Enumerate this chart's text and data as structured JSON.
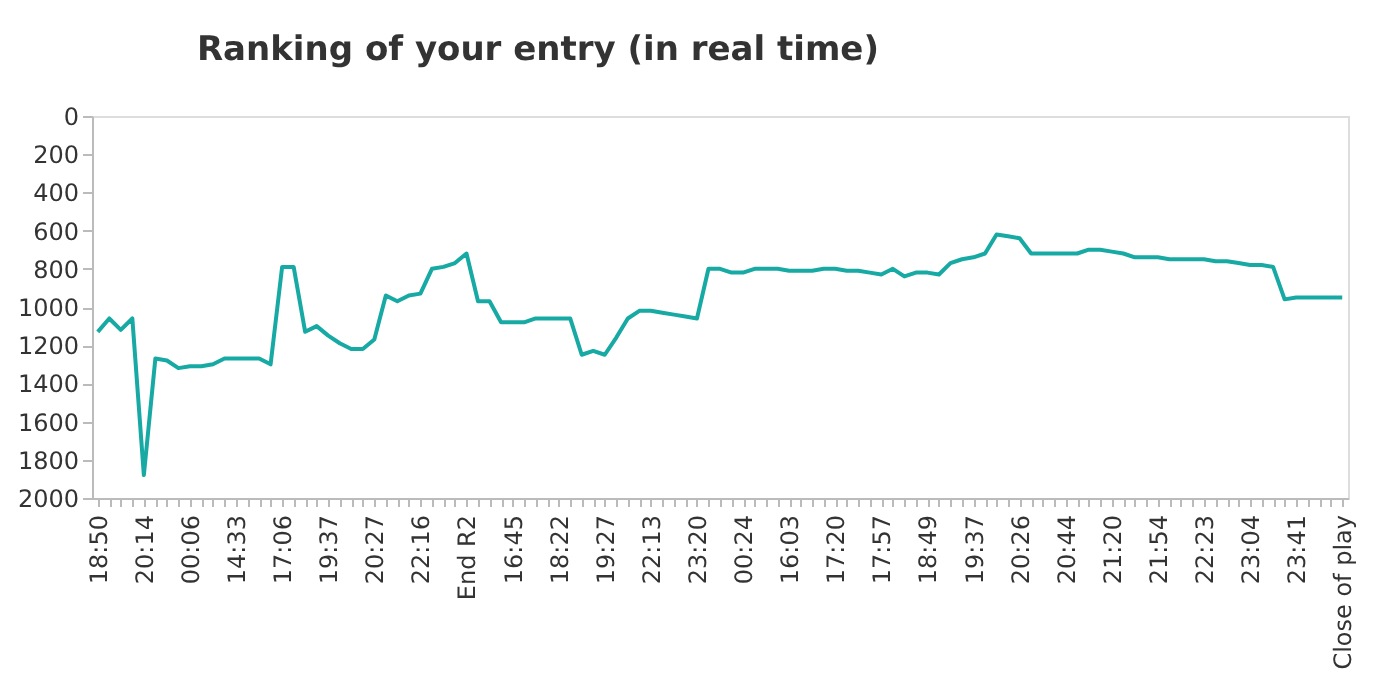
{
  "chart_data": {
    "type": "line",
    "title": "Ranking of your entry (in real time)",
    "categories": [
      "18:50",
      null,
      null,
      null,
      "20:14",
      null,
      null,
      null,
      "00:06",
      null,
      null,
      null,
      "14:33",
      null,
      null,
      null,
      "17:06",
      null,
      null,
      null,
      "19:37",
      null,
      null,
      null,
      "20:27",
      null,
      null,
      null,
      "22:16",
      null,
      null,
      null,
      "End R2",
      null,
      null,
      null,
      "16:45",
      null,
      null,
      null,
      "18:22",
      null,
      null,
      null,
      "19:27",
      null,
      null,
      null,
      "22:13",
      null,
      null,
      null,
      "23:20",
      null,
      null,
      null,
      "00:24",
      null,
      null,
      null,
      "16:03",
      null,
      null,
      null,
      "17:20",
      null,
      null,
      null,
      "17:57",
      null,
      null,
      null,
      "18:49",
      null,
      null,
      null,
      "19:37",
      null,
      null,
      null,
      "20:26",
      null,
      null,
      null,
      "20:44",
      null,
      null,
      null,
      "21:20",
      null,
      null,
      null,
      "21:54",
      null,
      null,
      null,
      "22:23",
      null,
      null,
      null,
      "23:04",
      null,
      null,
      null,
      "23:41",
      null,
      null,
      null,
      "Close of play"
    ],
    "series": [
      {
        "color": "#17a9a3",
        "values": [
          1130,
          1060,
          1120,
          1060,
          1880,
          1270,
          1280,
          1320,
          1310,
          1310,
          1300,
          1270,
          1270,
          1270,
          1270,
          1300,
          790,
          790,
          1130,
          1100,
          1150,
          1190,
          1220,
          1220,
          1170,
          940,
          970,
          940,
          930,
          800,
          790,
          770,
          720,
          970,
          970,
          1080,
          1080,
          1080,
          1060,
          1060,
          1060,
          1060,
          1250,
          1230,
          1250,
          1160,
          1060,
          1020,
          1020,
          1030,
          1040,
          1050,
          1060,
          800,
          800,
          820,
          820,
          800,
          800,
          800,
          810,
          810,
          810,
          800,
          800,
          810,
          810,
          820,
          830,
          800,
          840,
          820,
          820,
          830,
          770,
          750,
          740,
          720,
          620,
          630,
          640,
          720,
          720,
          720,
          720,
          720,
          700,
          700,
          710,
          720,
          740,
          740,
          740,
          750,
          750,
          750,
          750,
          760,
          760,
          770,
          780,
          780,
          790,
          960,
          950,
          950,
          950,
          950,
          950
        ]
      }
    ],
    "ylim": [
      2000,
      0
    ],
    "yticks": [
      0,
      200,
      400,
      600,
      800,
      1000,
      1200,
      1400,
      1600,
      1800,
      2000
    ],
    "grid": false,
    "line_style": "solid",
    "marker": "none"
  }
}
